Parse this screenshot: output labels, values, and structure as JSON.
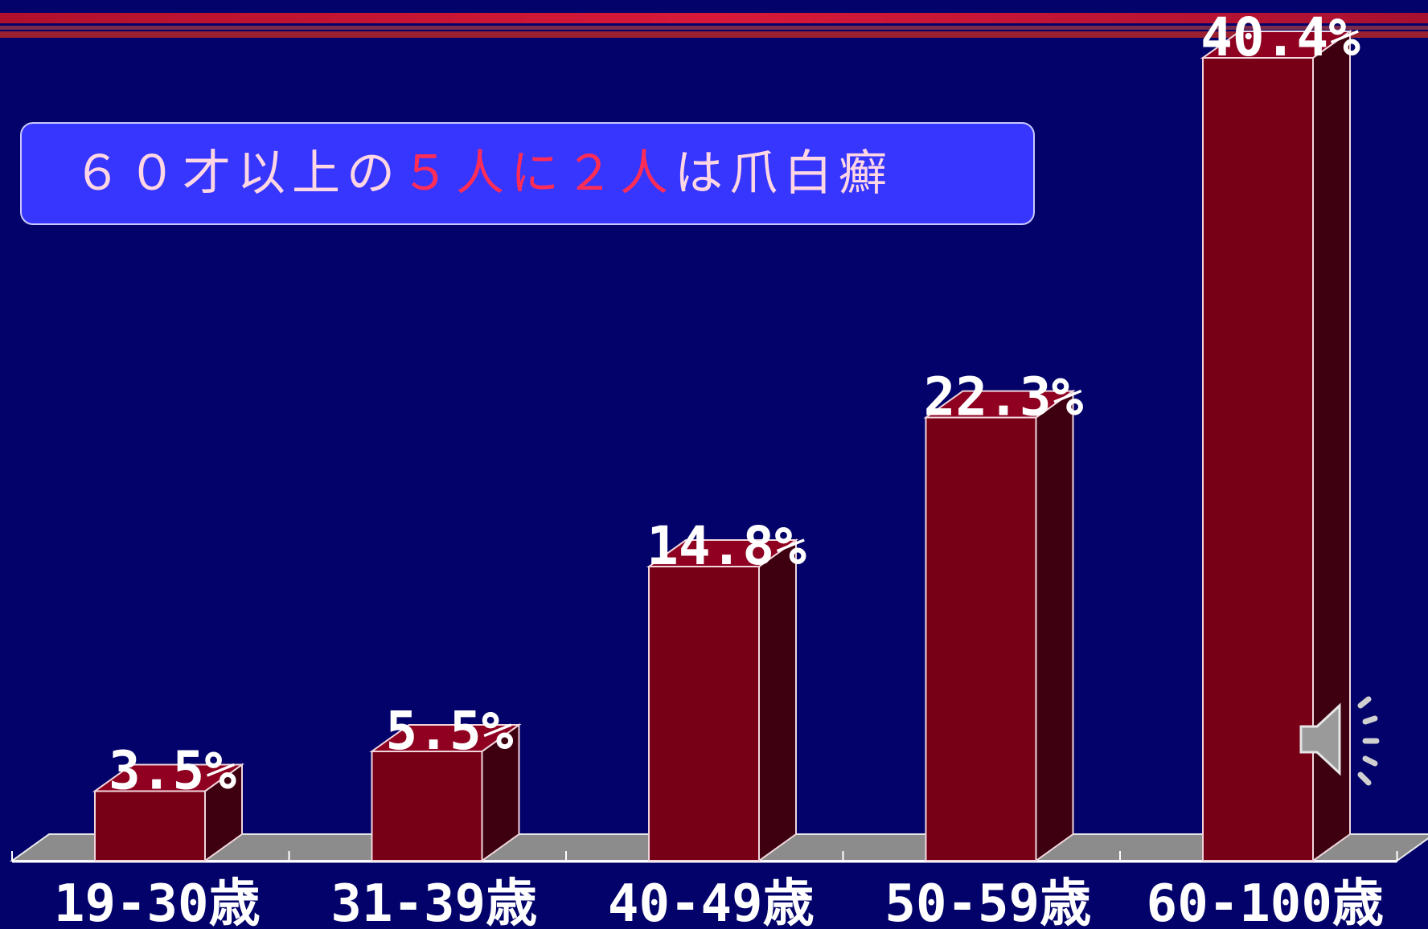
{
  "banner": {
    "part1": "６０才以上の",
    "part2": "５人に２人",
    "part3": "は爪白癬"
  },
  "colors": {
    "background": "#02026a",
    "bar_front": "#780016",
    "bar_side": "#3e0010",
    "bar_top": "#900020",
    "floor": "#8c8c8c",
    "banner_fill": "#3636ff",
    "banner_text": "#ffd6e4",
    "banner_highlight": "#ff2d55"
  },
  "chart_data": {
    "type": "bar",
    "categories": [
      "19-30歳",
      "31-39歳",
      "40-49歳",
      "50-59歳",
      "60-100歳"
    ],
    "values": [
      3.5,
      5.5,
      14.8,
      22.3,
      40.4
    ],
    "data_labels": [
      "3.5%",
      "5.5%",
      "14.8%",
      "22.3%",
      "40.4%"
    ],
    "title": "",
    "xlabel": "",
    "ylabel": "",
    "ylim": [
      0,
      40.4
    ],
    "grid": false,
    "legend": "none"
  },
  "speaker_icon": "speaker-icon"
}
